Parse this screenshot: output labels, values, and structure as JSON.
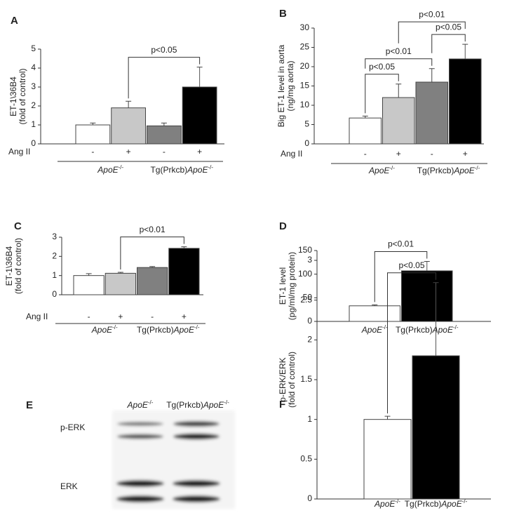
{
  "chart_data": [
    {
      "type": "bar",
      "panel": "A",
      "ylabel": [
        "ET-1\\36B4",
        "(fold of control)"
      ],
      "row_label": "Ang II",
      "categories": [
        "-",
        "+",
        "-",
        "+"
      ],
      "groups": [
        {
          "italic": "ApoE",
          "sup": "-/-"
        },
        {
          "prefix": "Tg(Prkcb)",
          "italic": "ApoE",
          "sup": "-/-"
        }
      ],
      "values": [
        1,
        1.9,
        0.95,
        3.0
      ],
      "errors": [
        0.1,
        0.35,
        0.15,
        1.05
      ],
      "colors": [
        "#ffffff",
        "#c8c8c8",
        "#808080",
        "#000000"
      ],
      "ylim": [
        0,
        5
      ],
      "yticks": [
        0,
        1,
        2,
        3,
        4,
        5
      ],
      "annotations": [
        {
          "text": "p<0.05",
          "from": 1,
          "to": 3
        }
      ]
    },
    {
      "type": "bar",
      "panel": "B",
      "ylabel": [
        "Big ET-1 level in aorta",
        "(ng/mg aorta)"
      ],
      "row_label": "Ang II",
      "categories": [
        "-",
        "+",
        "-",
        "+"
      ],
      "groups": [
        {
          "italic": "ApoE",
          "sup": "-/-"
        },
        {
          "prefix": "Tg(Prkcb)",
          "italic": "ApoE",
          "sup": "-/-"
        }
      ],
      "values": [
        6.7,
        12,
        16,
        22
      ],
      "errors": [
        0.5,
        3.5,
        3.5,
        3.8
      ],
      "colors": [
        "#ffffff",
        "#c8c8c8",
        "#808080",
        "#000000"
      ],
      "ylim": [
        0,
        30
      ],
      "yticks": [
        0,
        5,
        10,
        15,
        20,
        25,
        30
      ],
      "annotations": [
        {
          "text": "p<0.05",
          "from": 0,
          "to": 1
        },
        {
          "text": "p<0.01",
          "from": 0,
          "to": 2
        },
        {
          "text": "p<0.05",
          "from": 2,
          "to": 3
        },
        {
          "text": "p<0.01",
          "from": 1,
          "to": 3
        }
      ]
    },
    {
      "type": "bar",
      "panel": "C",
      "ylabel": [
        "ET-1\\36B4",
        "(fold of control)"
      ],
      "row_label": "Ang II",
      "categories": [
        "-",
        "+",
        "-",
        "+"
      ],
      "groups": [
        {
          "italic": "ApoE",
          "sup": "-/-"
        },
        {
          "prefix": "Tg(Prkcb)",
          "italic": "ApoE",
          "sup": "-/-"
        }
      ],
      "values": [
        1,
        1.12,
        1.42,
        2.42
      ],
      "errors": [
        0.1,
        0.05,
        0.05,
        0.08
      ],
      "colors": [
        "#ffffff",
        "#c8c8c8",
        "#808080",
        "#000000"
      ],
      "ylim": [
        0,
        3
      ],
      "yticks": [
        0,
        1,
        2,
        3
      ],
      "annotations": [
        {
          "text": "p<0.01",
          "from": 1,
          "to": 3
        }
      ]
    },
    {
      "type": "bar",
      "panel": "D",
      "ylabel": [
        "ET-1 level",
        "(pg/ml/mg protein)"
      ],
      "groups": [
        {
          "italic": "ApoE",
          "sup": "-/-"
        },
        {
          "prefix": "Tg(Prkcb)",
          "italic": "ApoE",
          "sup": "-/-"
        }
      ],
      "values": [
        33,
        107
      ],
      "errors": [
        2,
        20
      ],
      "colors": [
        "#ffffff",
        "#000000"
      ],
      "ylim": [
        0,
        150
      ],
      "yticks": [
        0,
        50,
        100,
        150
      ],
      "annotations": [
        {
          "text": "p<0.01",
          "from": 0,
          "to": 1
        }
      ]
    },
    {
      "type": "blot",
      "panel": "E",
      "lanes": [
        {
          "italic": "ApoE",
          "sup": "-/-"
        },
        {
          "prefix": "Tg(Prkcb)",
          "italic": "ApoE",
          "sup": "-/-"
        }
      ],
      "rows": [
        "p-ERK",
        "ERK"
      ]
    },
    {
      "type": "bar",
      "panel": "F",
      "ylabel": [
        "p-ERK/ERK",
        "(fold of control)"
      ],
      "groups": [
        {
          "italic": "ApoE",
          "sup": "-/-"
        },
        {
          "prefix": "Tg(Prkcb)",
          "italic": "ApoE",
          "sup": "-/-"
        }
      ],
      "values": [
        1,
        1.8
      ],
      "errors": [
        0.04,
        0.92
      ],
      "colors": [
        "#ffffff",
        "#000000"
      ],
      "ylim": [
        0,
        3
      ],
      "yticks": [
        0,
        0.5,
        1,
        1.5,
        2,
        2.5,
        3
      ],
      "annotations": [
        {
          "text": "p<0.05",
          "from": 0,
          "to": 1
        }
      ]
    }
  ]
}
